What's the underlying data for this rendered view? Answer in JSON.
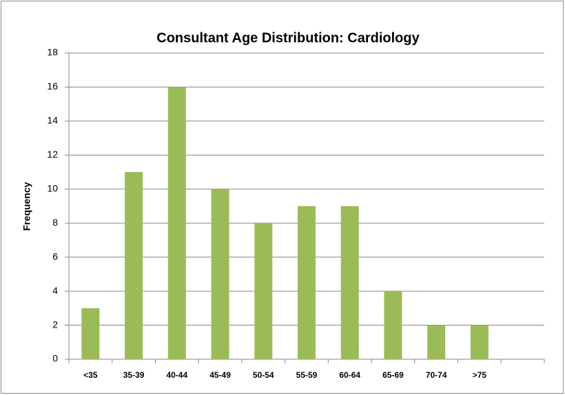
{
  "chart_data": {
    "type": "bar",
    "title": "Consultant Age Distribution: Cardiology",
    "y_label": "Frequency",
    "categories": [
      "<35",
      "35-39",
      "40-44",
      "45-49",
      "50-54",
      "55-59",
      "60-64",
      "65-69",
      "70-74",
      ">75",
      null
    ],
    "values": [
      3,
      11,
      16,
      10,
      8,
      9,
      9,
      4,
      2,
      2,
      null
    ],
    "color": "#9bbb59",
    "ylim": [
      0,
      18
    ],
    "yticks": [
      0,
      2,
      4,
      6,
      8,
      10,
      12,
      14,
      16,
      18
    ],
    "grid": true
  }
}
